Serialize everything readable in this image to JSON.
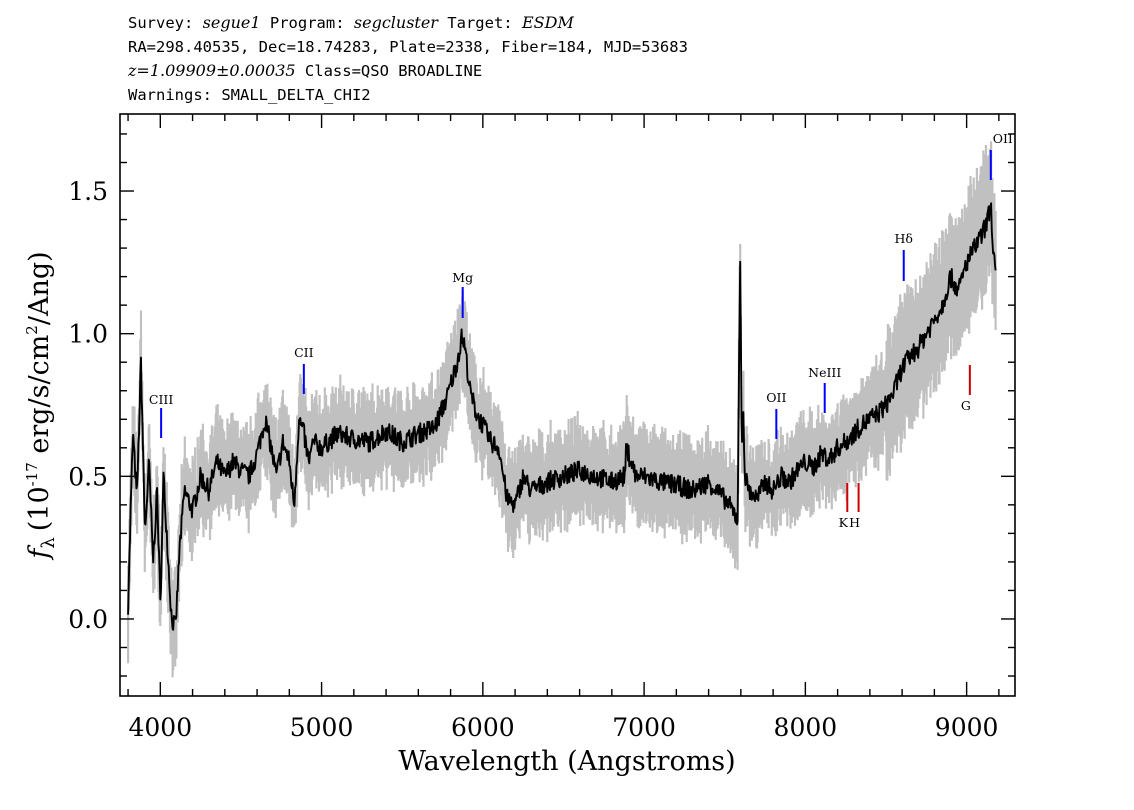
{
  "header": {
    "line1": {
      "survey_label": "Survey:",
      "survey": "segue1",
      "program_label": "Program:",
      "program": "segcluster",
      "target_label": "Target:",
      "target": "ESDM"
    },
    "line2": "RA=298.40535, Dec=18.74283, Plate=2338, Fiber=184, MJD=53683",
    "line3": {
      "redshift": "z=1.09909±0.00035",
      "class": "Class=QSO BROADLINE"
    },
    "line4": "Warnings: SMALL_DELTA_CHI2"
  },
  "chart_data": {
    "type": "line",
    "xlabel": "Wavelength (Angstroms)",
    "ylabel": {
      "symbol": "f",
      "subscript": "λ",
      "unit_prefix": "(10",
      "exponent": "-17",
      "unit_mid": " erg/s/cm",
      "unit_exp": "2",
      "unit_end": "/Ang)"
    },
    "xlim": [
      3750,
      9300
    ],
    "ylim": [
      -0.27,
      1.77
    ],
    "x_ticks": [
      "4000",
      "5000",
      "6000",
      "7000",
      "8000",
      "9000"
    ],
    "y_ticks": [
      "0.0",
      "0.5",
      "1.0",
      "1.5"
    ],
    "grid": false,
    "colors": {
      "flux": "#000000",
      "error_band": "#c0c0c0",
      "emission": "#0000ff",
      "absorption": "#cc0000"
    },
    "series": [
      {
        "x": [
          3800,
          3830,
          3855,
          3880,
          3905,
          3930,
          3955,
          3980,
          4000,
          4020,
          4045,
          4070,
          4095,
          4120,
          4150,
          4200,
          4250,
          4300,
          4350,
          4400,
          4450,
          4500,
          4550,
          4600,
          4650,
          4680,
          4720,
          4760,
          4800,
          4830,
          4860,
          4890,
          4920,
          4950,
          5000,
          5100,
          5200,
          5300,
          5400,
          5500,
          5600,
          5700,
          5780,
          5840,
          5870,
          5890,
          5920,
          5960,
          6000,
          6050,
          6100,
          6150,
          6200,
          6250,
          6300,
          6400,
          6500,
          6600,
          6700,
          6800,
          6880,
          6890,
          6950,
          7000,
          7100,
          7200,
          7300,
          7400,
          7450,
          7500,
          7550,
          7580,
          7595,
          7605,
          7615,
          7625,
          7650,
          7700,
          7750,
          7800,
          7850,
          7900,
          7950,
          8000,
          8050,
          8100,
          8150,
          8200,
          8250,
          8300,
          8350,
          8400,
          8450,
          8500,
          8550,
          8600,
          8650,
          8700,
          8750,
          8800,
          8850,
          8900,
          8950,
          9000,
          9050,
          9100,
          9130,
          9150,
          9165,
          9180
        ],
        "y": [
          0.05,
          0.65,
          0.42,
          0.9,
          0.3,
          0.55,
          0.2,
          0.45,
          0.05,
          0.5,
          0.25,
          0.0,
          -0.03,
          0.25,
          0.45,
          0.38,
          0.5,
          0.45,
          0.55,
          0.5,
          0.55,
          0.52,
          0.5,
          0.58,
          0.7,
          0.62,
          0.5,
          0.62,
          0.55,
          0.4,
          0.7,
          0.65,
          0.55,
          0.62,
          0.6,
          0.65,
          0.63,
          0.62,
          0.66,
          0.62,
          0.65,
          0.67,
          0.78,
          0.9,
          0.99,
          0.95,
          0.8,
          0.72,
          0.68,
          0.62,
          0.6,
          0.42,
          0.4,
          0.5,
          0.45,
          0.48,
          0.5,
          0.52,
          0.5,
          0.48,
          0.5,
          0.6,
          0.5,
          0.5,
          0.48,
          0.47,
          0.45,
          0.48,
          0.45,
          0.42,
          0.38,
          0.35,
          1.3,
          0.6,
          0.75,
          0.5,
          0.45,
          0.42,
          0.48,
          0.45,
          0.5,
          0.48,
          0.52,
          0.55,
          0.53,
          0.58,
          0.56,
          0.6,
          0.62,
          0.65,
          0.68,
          0.7,
          0.72,
          0.75,
          0.8,
          0.88,
          0.92,
          0.95,
          1.0,
          1.05,
          1.1,
          1.2,
          1.15,
          1.25,
          1.3,
          1.35,
          1.4,
          1.45,
          1.3,
          1.2
        ]
      }
    ],
    "emission_lines": [
      {
        "label": "CIII",
        "x": 4005
      },
      {
        "label": "CII",
        "x": 4890
      },
      {
        "label": "Mg",
        "x": 5875
      },
      {
        "label": "OII",
        "x": 7820
      },
      {
        "label": "NeIII",
        "x": 8120
      },
      {
        "label": "Hδ",
        "x": 8610
      },
      {
        "label": "OII",
        "x": 9150
      }
    ],
    "absorption_lines": [
      {
        "label": "K",
        "x": 8260
      },
      {
        "label": "H",
        "x": 8330
      },
      {
        "label": "G",
        "x": 9020
      }
    ]
  }
}
